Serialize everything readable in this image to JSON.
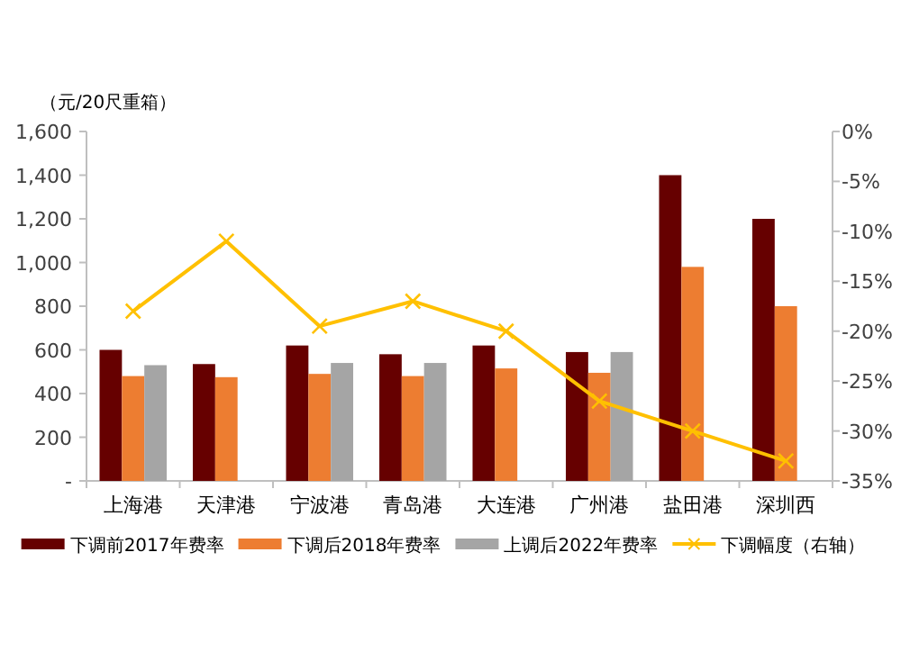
{
  "chart_data": {
    "type": "bar",
    "ylabel": "（元/20尺重箱）",
    "categories": [
      "上海港",
      "天津港",
      "宁波港",
      "青岛港",
      "大连港",
      "广州港",
      "盐田港",
      "深圳西"
    ],
    "series": [
      {
        "name": "下调前2017年费率",
        "color": "#660000",
        "values": [
          600,
          535,
          620,
          580,
          620,
          590,
          1400,
          1200
        ]
      },
      {
        "name": "下调后2018年费率",
        "color": "#ed7d31",
        "values": [
          480,
          475,
          490,
          480,
          515,
          495,
          980,
          800
        ]
      },
      {
        "name": "上调后2022年费率",
        "color": "#a5a5a5",
        "values": [
          530,
          null,
          540,
          540,
          null,
          590,
          null,
          null
        ]
      },
      {
        "name": "下调幅度（右轴）",
        "type": "line",
        "axis": "y2",
        "color": "#ffc000",
        "marker": "cross",
        "values": [
          -18,
          -11,
          -19.5,
          -17,
          -20,
          -27,
          -30,
          -33
        ]
      }
    ],
    "ylim": [
      0,
      1600
    ],
    "yticks": [
      {
        "value": 0,
        "label": "-"
      },
      {
        "value": 200,
        "label": "200"
      },
      {
        "value": 400,
        "label": "400"
      },
      {
        "value": 600,
        "label": "600"
      },
      {
        "value": 800,
        "label": "800"
      },
      {
        "value": 1000,
        "label": "1,000"
      },
      {
        "value": 1200,
        "label": "1,200"
      },
      {
        "value": 1400,
        "label": "1,400"
      },
      {
        "value": 1600,
        "label": "1,600"
      }
    ],
    "y2lim": [
      -35,
      0
    ],
    "y2ticks": [
      {
        "value": 0,
        "label": "0%"
      },
      {
        "value": -5,
        "label": "-5%"
      },
      {
        "value": -10,
        "label": "-10%"
      },
      {
        "value": -15,
        "label": "-15%"
      },
      {
        "value": -20,
        "label": "-20%"
      },
      {
        "value": -25,
        "label": "-25%"
      },
      {
        "value": -30,
        "label": "-30%"
      },
      {
        "value": -35,
        "label": "-35%"
      }
    ],
    "grid": false,
    "legend": "bottom"
  }
}
